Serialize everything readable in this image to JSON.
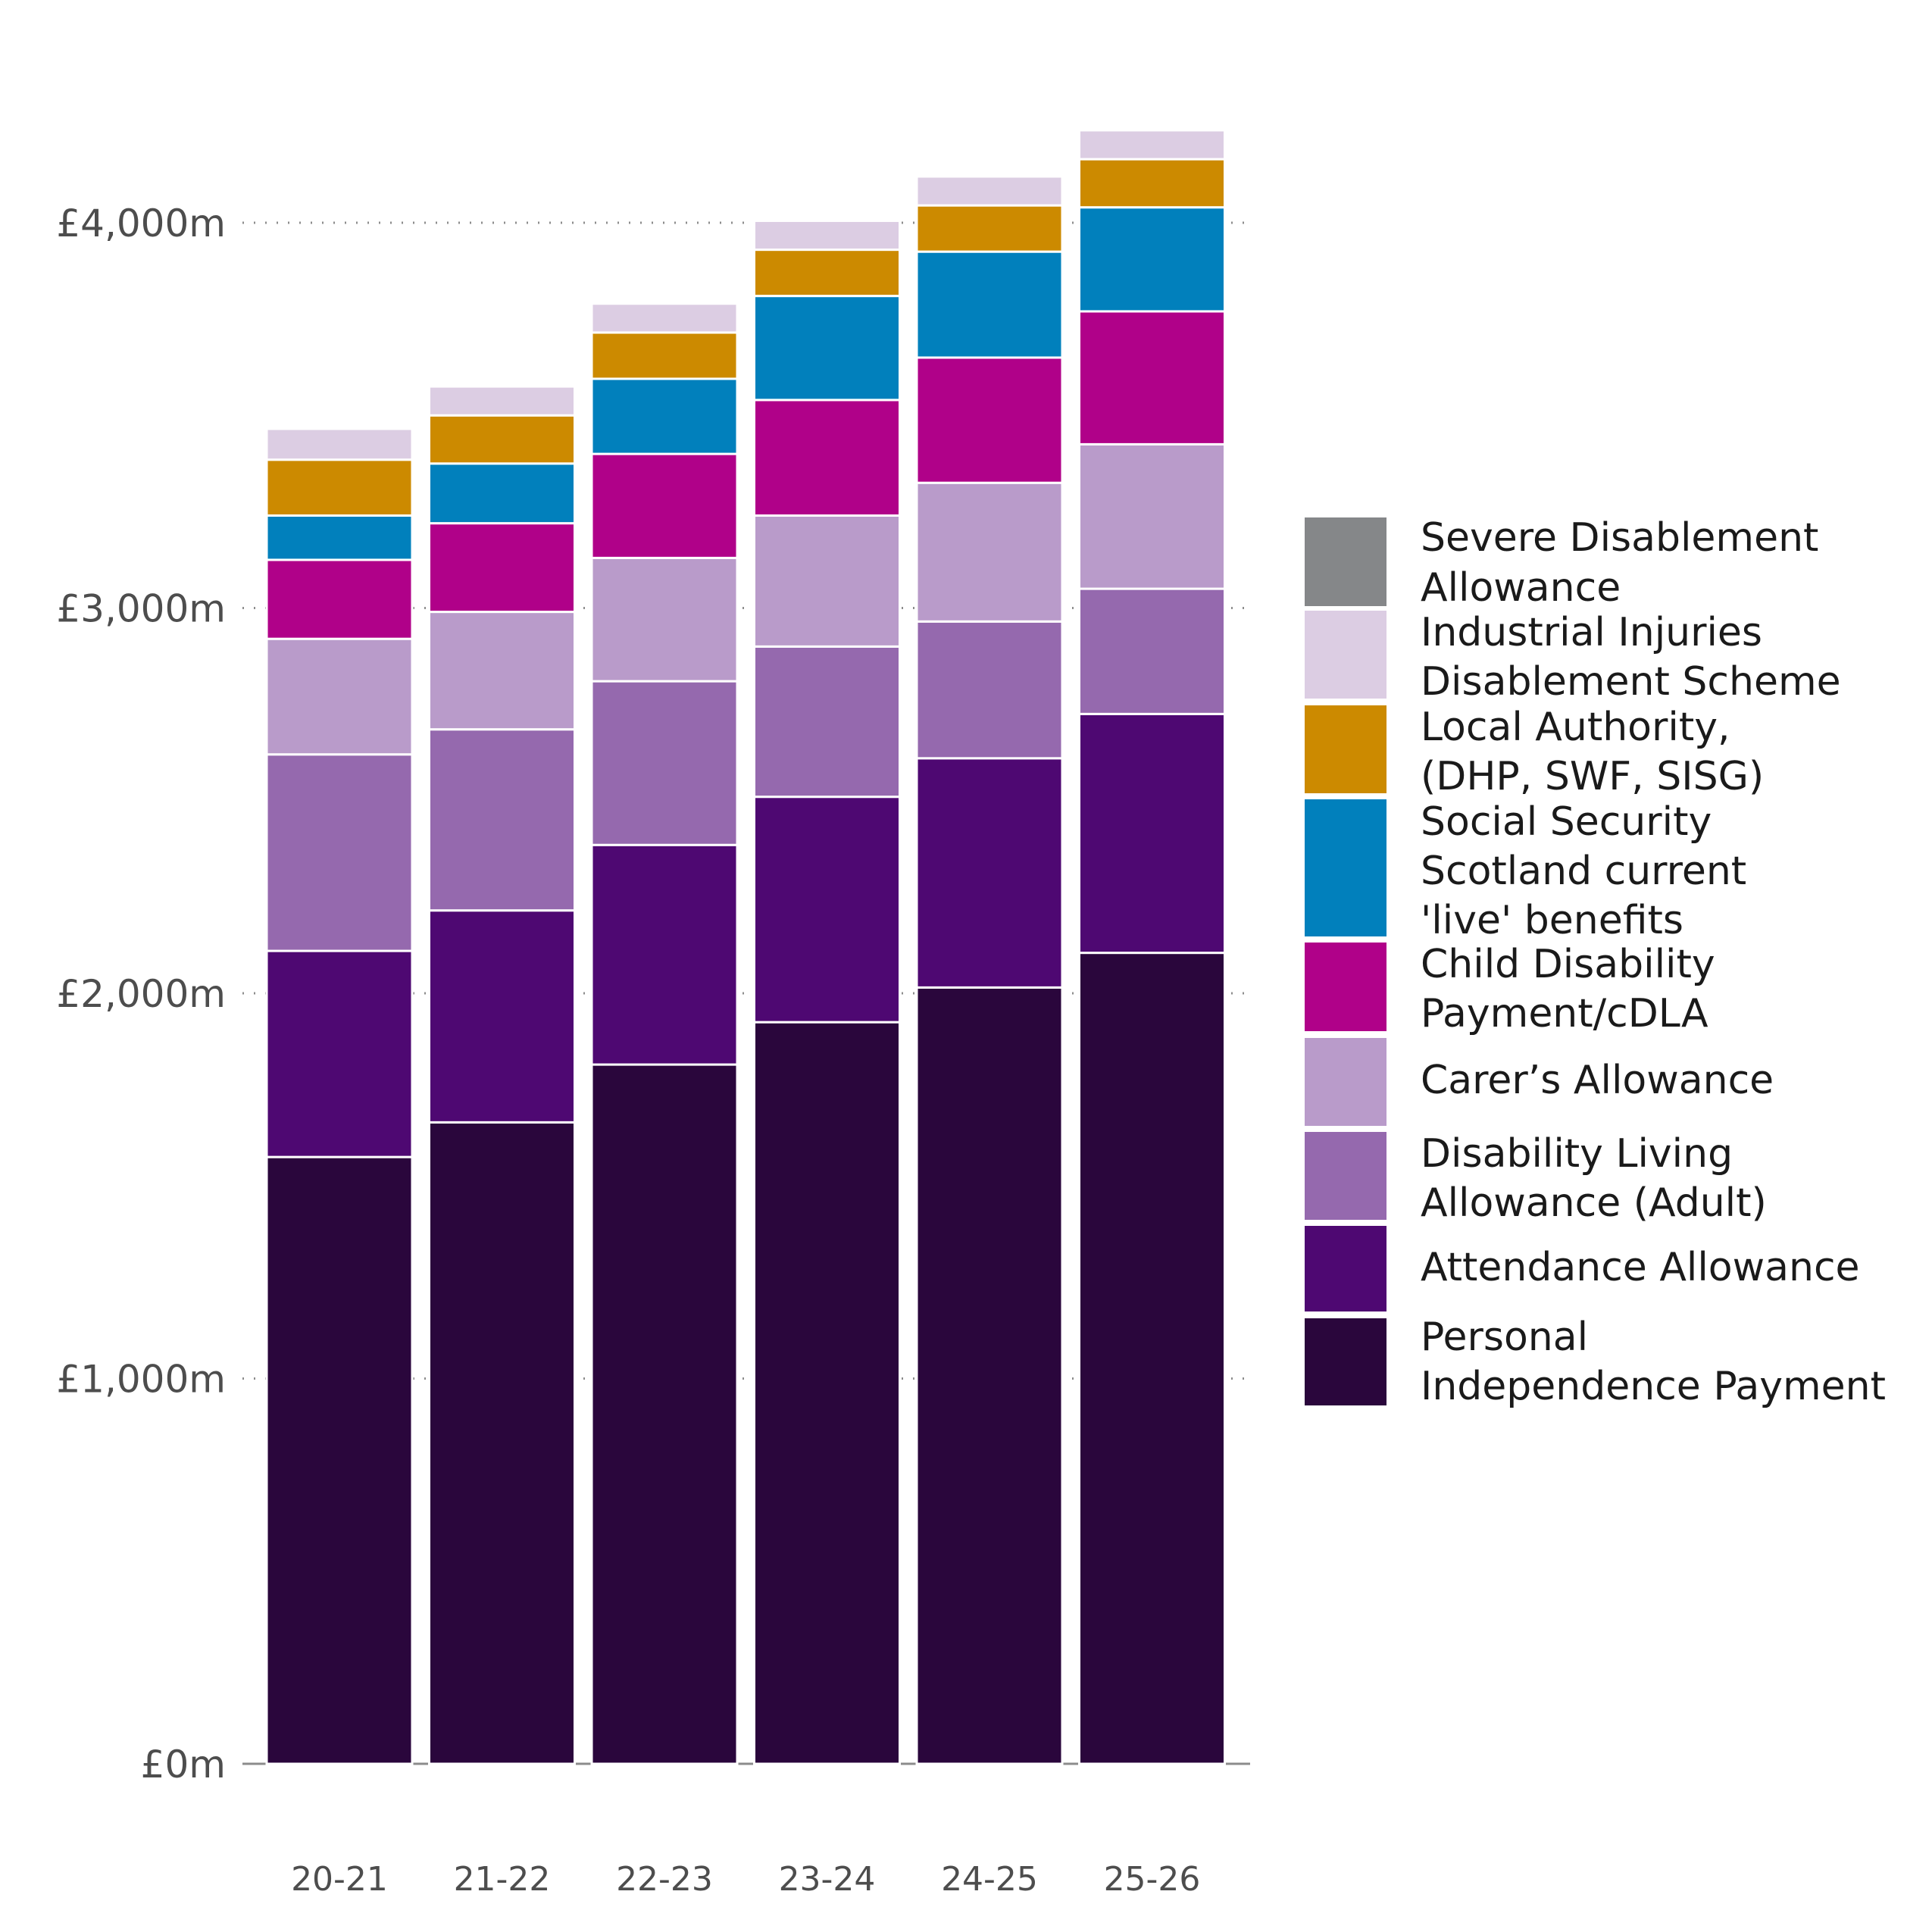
{
  "chart_data": {
    "type": "bar",
    "stacked": true,
    "title": "",
    "xlabel": "",
    "ylabel": "",
    "ylim": [
      0,
      4400
    ],
    "y_ticks": [
      0,
      1000,
      2000,
      3000,
      4000
    ],
    "y_tick_labels": [
      "£0m",
      "£1,000m",
      "£2,000m",
      "£3,000m",
      "£4,000m"
    ],
    "grid": "horizontal dotted",
    "legend_position": "right",
    "categories": [
      "20-21",
      "21-22",
      "22-23",
      "23-24",
      "24-25",
      "25-26"
    ],
    "series": [
      {
        "name": "Personal Independence Payment",
        "color": "#2a063c",
        "legend_lines": [
          "Personal",
          "Independence Payment"
        ],
        "values": [
          1575,
          1665,
          1815,
          1925,
          2015,
          2105
        ]
      },
      {
        "name": "Attendance Allowance",
        "color": "#4e0872",
        "legend_lines": [
          "Attendance Allowance"
        ],
        "values": [
          535,
          550,
          570,
          585,
          595,
          620
        ]
      },
      {
        "name": "Disability Living Allowance (Adult)",
        "color": "#9569ae",
        "legend_lines": [
          "Disability Living",
          "Allowance (Adult)"
        ],
        "values": [
          510,
          470,
          425,
          390,
          355,
          325
        ]
      },
      {
        "name": "Carer’s Allowance",
        "color": "#b99bca",
        "legend_lines": [
          "Carer’s Allowance"
        ],
        "values": [
          300,
          305,
          320,
          340,
          360,
          375
        ]
      },
      {
        "name": "Child Disability Payment/cDLA",
        "color": "#b00189",
        "legend_lines": [
          "Child Disability",
          "Payment/cDLA"
        ],
        "values": [
          205,
          230,
          270,
          300,
          325,
          345
        ]
      },
      {
        "name": "Social Security Scotland current 'live' benefits",
        "color": "#0180bc",
        "legend_lines": [
          "Social Security",
          "Scotland current",
          "'live' benefits"
        ],
        "values": [
          115,
          155,
          195,
          270,
          275,
          270
        ]
      },
      {
        "name": "Local Authority, (DHP, SWF, SISG)",
        "color": "#cc8a00",
        "legend_lines": [
          "Local Authority,",
          "(DHP, SWF, SISG)"
        ],
        "values": [
          145,
          125,
          120,
          120,
          120,
          125
        ]
      },
      {
        "name": "Industrial Injuries Disablement Scheme",
        "color": "#dccde3",
        "legend_lines": [
          "Industrial Injuries",
          "Disablement Scheme"
        ],
        "values": [
          80,
          75,
          75,
          75,
          75,
          75
        ]
      },
      {
        "name": "Severe Disablement Allowance",
        "color": "#858789",
        "legend_lines": [
          "Severe Disablement",
          "Allowance"
        ],
        "values": [
          0,
          0,
          0,
          0,
          0,
          0
        ]
      }
    ]
  }
}
